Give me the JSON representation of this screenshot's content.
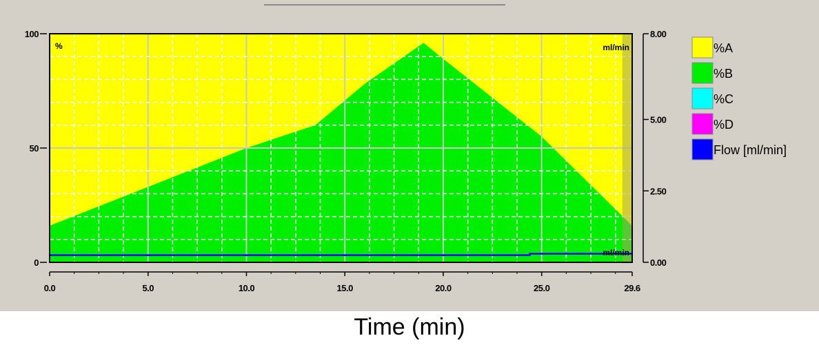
{
  "chart_data": {
    "type": "area",
    "xlabel": "Time (min)",
    "x_ticks": [
      "0.0",
      "5.0",
      "10.0",
      "15.0",
      "20.0",
      "25.0",
      "29.6"
    ],
    "y_left_ticks": [
      "0",
      "50",
      "100"
    ],
    "y_right_ticks": [
      "0.00",
      "2.50",
      "5.00",
      "8.00"
    ],
    "left_unit": "%",
    "right_unit_top": "ml/min",
    "right_unit_bottom": "ml/min",
    "xlim": [
      0,
      29.6
    ],
    "ylim_left": [
      0,
      100
    ],
    "ylim_right": [
      0,
      8
    ],
    "grid": true,
    "legend_position": "right",
    "series": [
      {
        "name": "%A",
        "color": "#ffff00",
        "x": [
          0,
          29.6
        ],
        "y": [
          100,
          100
        ]
      },
      {
        "name": "%B",
        "color": "#00ee00",
        "x": [
          0,
          5,
          10,
          13.5,
          16,
          19,
          20,
          25,
          29.6
        ],
        "y": [
          16,
          33,
          50,
          60,
          78,
          96,
          89,
          55,
          16
        ]
      },
      {
        "name": "%C",
        "color": "#00ffff",
        "x": [
          0,
          29.6
        ],
        "y": [
          0,
          0
        ]
      },
      {
        "name": "%D",
        "color": "#ff00ff",
        "x": [
          0,
          29.6
        ],
        "y": [
          0,
          0
        ]
      },
      {
        "name": "Flow [ml/min]",
        "color": "#0000ff",
        "x": [
          0,
          24.4,
          24.4,
          29.6
        ],
        "y": [
          0.25,
          0.25,
          0.3,
          0.3
        ]
      }
    ]
  }
}
